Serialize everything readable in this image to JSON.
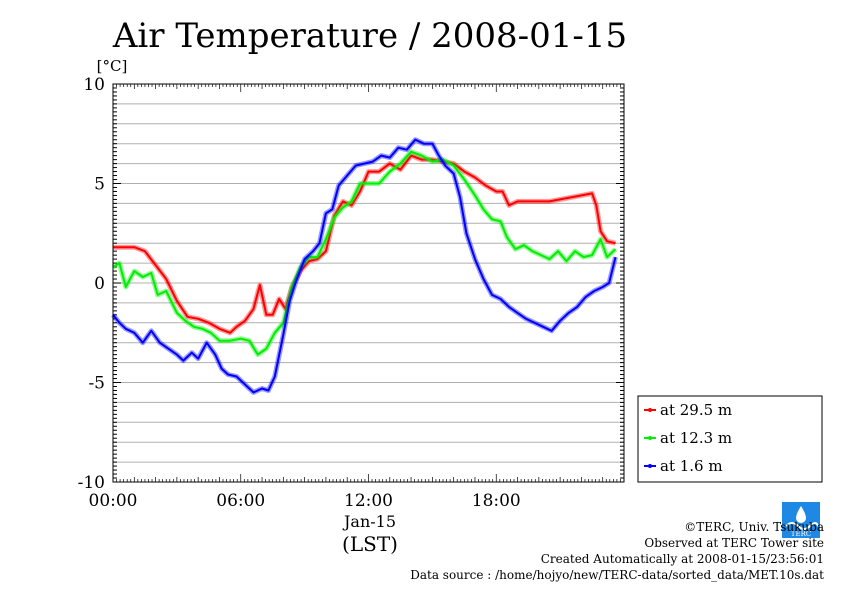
{
  "chart_data": {
    "type": "line",
    "title": "Air Temperature / 2008-01-15",
    "ylabel": "[°C]",
    "xlabel": "(LST)",
    "x_date_label": "Jan-15",
    "xlim_hours": [
      0,
      24
    ],
    "ylim": [
      -10,
      10
    ],
    "yticks": [
      "10",
      "5",
      "0",
      "-5",
      "-10"
    ],
    "xticks": [
      "00:00",
      "06:00",
      "12:00",
      "18:00"
    ],
    "grid": true,
    "legend_position": "right",
    "series": [
      {
        "name": "at 29.5 m",
        "color": "#ff0000",
        "points": [
          [
            0,
            1.8
          ],
          [
            0.5,
            1.8
          ],
          [
            1,
            1.8
          ],
          [
            1.5,
            1.6
          ],
          [
            2,
            0.9
          ],
          [
            2.5,
            0.2
          ],
          [
            3,
            -0.9
          ],
          [
            3.5,
            -1.7
          ],
          [
            4,
            -1.8
          ],
          [
            4.5,
            -2.0
          ],
          [
            5,
            -2.3
          ],
          [
            5.5,
            -2.5
          ],
          [
            5.8,
            -2.2
          ],
          [
            6.2,
            -1.9
          ],
          [
            6.6,
            -1.3
          ],
          [
            6.9,
            -0.1
          ],
          [
            7.2,
            -1.6
          ],
          [
            7.5,
            -1.6
          ],
          [
            7.8,
            -0.8
          ],
          [
            8.1,
            -1.3
          ],
          [
            8.4,
            -0.2
          ],
          [
            8.8,
            0.6
          ],
          [
            9.2,
            1.1
          ],
          [
            9.6,
            1.2
          ],
          [
            10,
            1.6
          ],
          [
            10.4,
            3.4
          ],
          [
            10.8,
            4.1
          ],
          [
            11.2,
            3.9
          ],
          [
            11.6,
            4.6
          ],
          [
            12,
            5.6
          ],
          [
            12.5,
            5.6
          ],
          [
            13,
            6.0
          ],
          [
            13.5,
            5.7
          ],
          [
            14,
            6.4
          ],
          [
            14.5,
            6.2
          ],
          [
            15,
            6.2
          ],
          [
            15.5,
            6.1
          ],
          [
            16,
            6.0
          ],
          [
            16.5,
            5.6
          ],
          [
            17,
            5.3
          ],
          [
            17.5,
            4.9
          ],
          [
            18,
            4.6
          ],
          [
            18.3,
            4.6
          ],
          [
            18.6,
            3.9
          ],
          [
            19,
            4.1
          ],
          [
            19.5,
            4.1
          ],
          [
            20,
            4.1
          ],
          [
            20.5,
            4.1
          ],
          [
            21,
            4.2
          ],
          [
            21.5,
            4.3
          ],
          [
            22,
            4.4
          ],
          [
            22.5,
            4.5
          ],
          [
            22.7,
            3.9
          ],
          [
            22.9,
            2.6
          ],
          [
            23.2,
            2.1
          ],
          [
            23.6,
            2.0
          ]
        ]
      },
      {
        "name": "at 12.3 m",
        "color": "#00ee00",
        "points": [
          [
            0,
            0.8
          ],
          [
            0.3,
            1.0
          ],
          [
            0.6,
            -0.2
          ],
          [
            1,
            0.6
          ],
          [
            1.4,
            0.3
          ],
          [
            1.8,
            0.5
          ],
          [
            2.1,
            -0.6
          ],
          [
            2.5,
            -0.4
          ],
          [
            3,
            -1.5
          ],
          [
            3.4,
            -1.9
          ],
          [
            3.8,
            -2.2
          ],
          [
            4.2,
            -2.3
          ],
          [
            4.6,
            -2.5
          ],
          [
            5,
            -2.9
          ],
          [
            5.5,
            -2.9
          ],
          [
            6,
            -2.8
          ],
          [
            6.4,
            -2.9
          ],
          [
            6.8,
            -3.6
          ],
          [
            7.2,
            -3.3
          ],
          [
            7.6,
            -2.5
          ],
          [
            8,
            -2.0
          ],
          [
            8.4,
            -0.2
          ],
          [
            8.8,
            0.8
          ],
          [
            9.2,
            1.3
          ],
          [
            9.6,
            1.3
          ],
          [
            10,
            2.2
          ],
          [
            10.4,
            3.3
          ],
          [
            10.8,
            3.8
          ],
          [
            11.2,
            4.1
          ],
          [
            11.6,
            5.0
          ],
          [
            12,
            5.0
          ],
          [
            12.5,
            5.0
          ],
          [
            13,
            5.6
          ],
          [
            13.5,
            6.0
          ],
          [
            14,
            6.6
          ],
          [
            14.5,
            6.4
          ],
          [
            15,
            6.1
          ],
          [
            15.5,
            6.2
          ],
          [
            16,
            5.9
          ],
          [
            16.5,
            5.2
          ],
          [
            17,
            4.4
          ],
          [
            17.4,
            3.7
          ],
          [
            17.8,
            3.2
          ],
          [
            18.2,
            3.1
          ],
          [
            18.5,
            2.3
          ],
          [
            18.9,
            1.7
          ],
          [
            19.3,
            1.9
          ],
          [
            19.7,
            1.6
          ],
          [
            20.1,
            1.4
          ],
          [
            20.5,
            1.2
          ],
          [
            20.9,
            1.6
          ],
          [
            21.3,
            1.1
          ],
          [
            21.7,
            1.6
          ],
          [
            22.1,
            1.3
          ],
          [
            22.5,
            1.4
          ],
          [
            22.9,
            2.2
          ],
          [
            23.2,
            1.3
          ],
          [
            23.6,
            1.7
          ]
        ]
      },
      {
        "name": "at 1.6 m",
        "color": "#0000ff",
        "points": [
          [
            0,
            -1.6
          ],
          [
            0.3,
            -2.0
          ],
          [
            0.6,
            -2.3
          ],
          [
            1,
            -2.5
          ],
          [
            1.4,
            -3.0
          ],
          [
            1.8,
            -2.4
          ],
          [
            2.2,
            -3.0
          ],
          [
            2.6,
            -3.3
          ],
          [
            3,
            -3.6
          ],
          [
            3.3,
            -3.9
          ],
          [
            3.7,
            -3.5
          ],
          [
            4,
            -3.8
          ],
          [
            4.4,
            -3.0
          ],
          [
            4.8,
            -3.6
          ],
          [
            5.1,
            -4.3
          ],
          [
            5.4,
            -4.6
          ],
          [
            5.8,
            -4.7
          ],
          [
            6.2,
            -5.1
          ],
          [
            6.6,
            -5.5
          ],
          [
            7,
            -5.3
          ],
          [
            7.3,
            -5.4
          ],
          [
            7.6,
            -4.7
          ],
          [
            8,
            -2.6
          ],
          [
            8.3,
            -0.9
          ],
          [
            8.6,
            0.1
          ],
          [
            9,
            1.2
          ],
          [
            9.4,
            1.6
          ],
          [
            9.7,
            2.0
          ],
          [
            10,
            3.5
          ],
          [
            10.3,
            3.7
          ],
          [
            10.6,
            4.9
          ],
          [
            11,
            5.4
          ],
          [
            11.4,
            5.9
          ],
          [
            11.8,
            6.0
          ],
          [
            12.2,
            6.1
          ],
          [
            12.6,
            6.4
          ],
          [
            13,
            6.3
          ],
          [
            13.4,
            6.8
          ],
          [
            13.8,
            6.7
          ],
          [
            14.2,
            7.2
          ],
          [
            14.6,
            7.0
          ],
          [
            15,
            7.0
          ],
          [
            15.3,
            6.4
          ],
          [
            15.6,
            5.9
          ],
          [
            16,
            5.5
          ],
          [
            16.3,
            4.3
          ],
          [
            16.6,
            2.5
          ],
          [
            17,
            1.2
          ],
          [
            17.4,
            0.2
          ],
          [
            17.8,
            -0.6
          ],
          [
            18.2,
            -0.8
          ],
          [
            18.6,
            -1.2
          ],
          [
            19,
            -1.5
          ],
          [
            19.4,
            -1.8
          ],
          [
            19.8,
            -2.0
          ],
          [
            20.2,
            -2.2
          ],
          [
            20.6,
            -2.4
          ],
          [
            21,
            -1.9
          ],
          [
            21.4,
            -1.5
          ],
          [
            21.8,
            -1.2
          ],
          [
            22.2,
            -0.7
          ],
          [
            22.6,
            -0.4
          ],
          [
            23,
            -0.2
          ],
          [
            23.3,
            0.0
          ],
          [
            23.6,
            1.3
          ]
        ]
      }
    ]
  },
  "credits": {
    "copyright": "©TERC, Univ. Tsukuba",
    "site": "Observed at TERC Tower site",
    "created": "Created Automatically at 2008-01-15/23:56:01",
    "source": "Data source : /home/hojyo/new/TERC-data/sorted_data/MET.10s.dat",
    "logo_text": "TERC"
  }
}
